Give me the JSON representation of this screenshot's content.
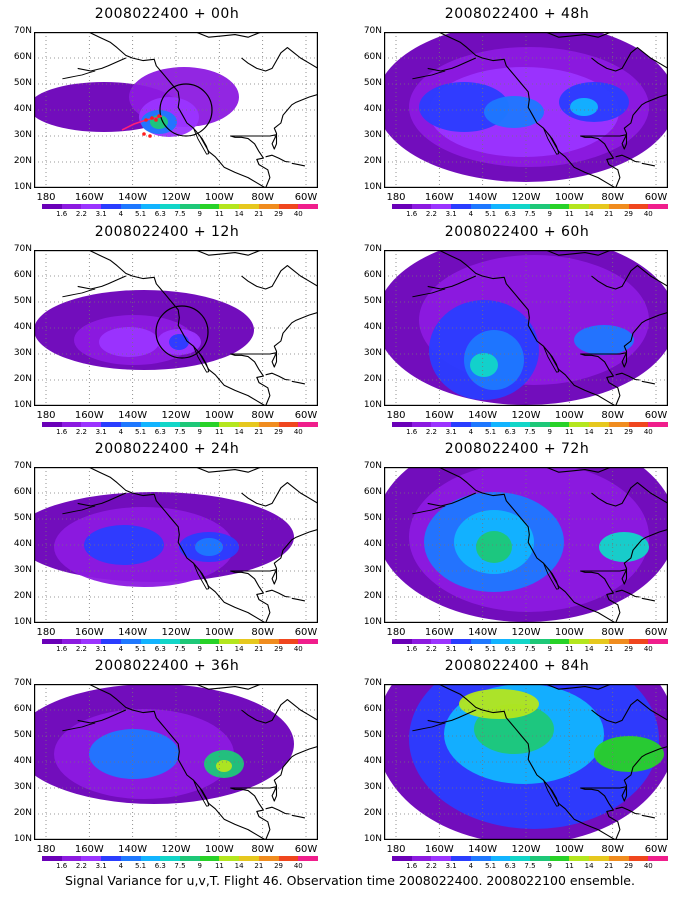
{
  "panels": [
    {
      "title": "2008022400 + 00h"
    },
    {
      "title": "2008022400 + 48h"
    },
    {
      "title": "2008022400 + 12h"
    },
    {
      "title": "2008022400 + 60h"
    },
    {
      "title": "2008022400 + 24h"
    },
    {
      "title": "2008022400 + 72h"
    },
    {
      "title": "2008022400 + 36h"
    },
    {
      "title": "2008022400 + 84h"
    }
  ],
  "axes": {
    "y_labels": [
      "70N",
      "60N",
      "50N",
      "40N",
      "30N",
      "20N",
      "10N"
    ],
    "x_labels": [
      "180",
      "160W",
      "140W",
      "120W",
      "100W",
      "80W",
      "60W"
    ]
  },
  "colorbar": {
    "labels": [
      "1.6",
      "2.2",
      "3.1",
      "4",
      "5.1",
      "6.3",
      "7.5",
      "9",
      "11",
      "14",
      "21",
      "29",
      "40"
    ],
    "colors": [
      "#6a00b8",
      "#8c1ae0",
      "#9b34ff",
      "#2a3dff",
      "#1e78ff",
      "#12b4ff",
      "#12d6c8",
      "#1ec878",
      "#28d228",
      "#b4e61e",
      "#e6c81e",
      "#f08c1e",
      "#f0461e",
      "#f01e8c"
    ]
  },
  "caption": "Signal Variance for u,v,T. Flight 46. Observation time 2008022400. 2008022100 ensemble."
}
